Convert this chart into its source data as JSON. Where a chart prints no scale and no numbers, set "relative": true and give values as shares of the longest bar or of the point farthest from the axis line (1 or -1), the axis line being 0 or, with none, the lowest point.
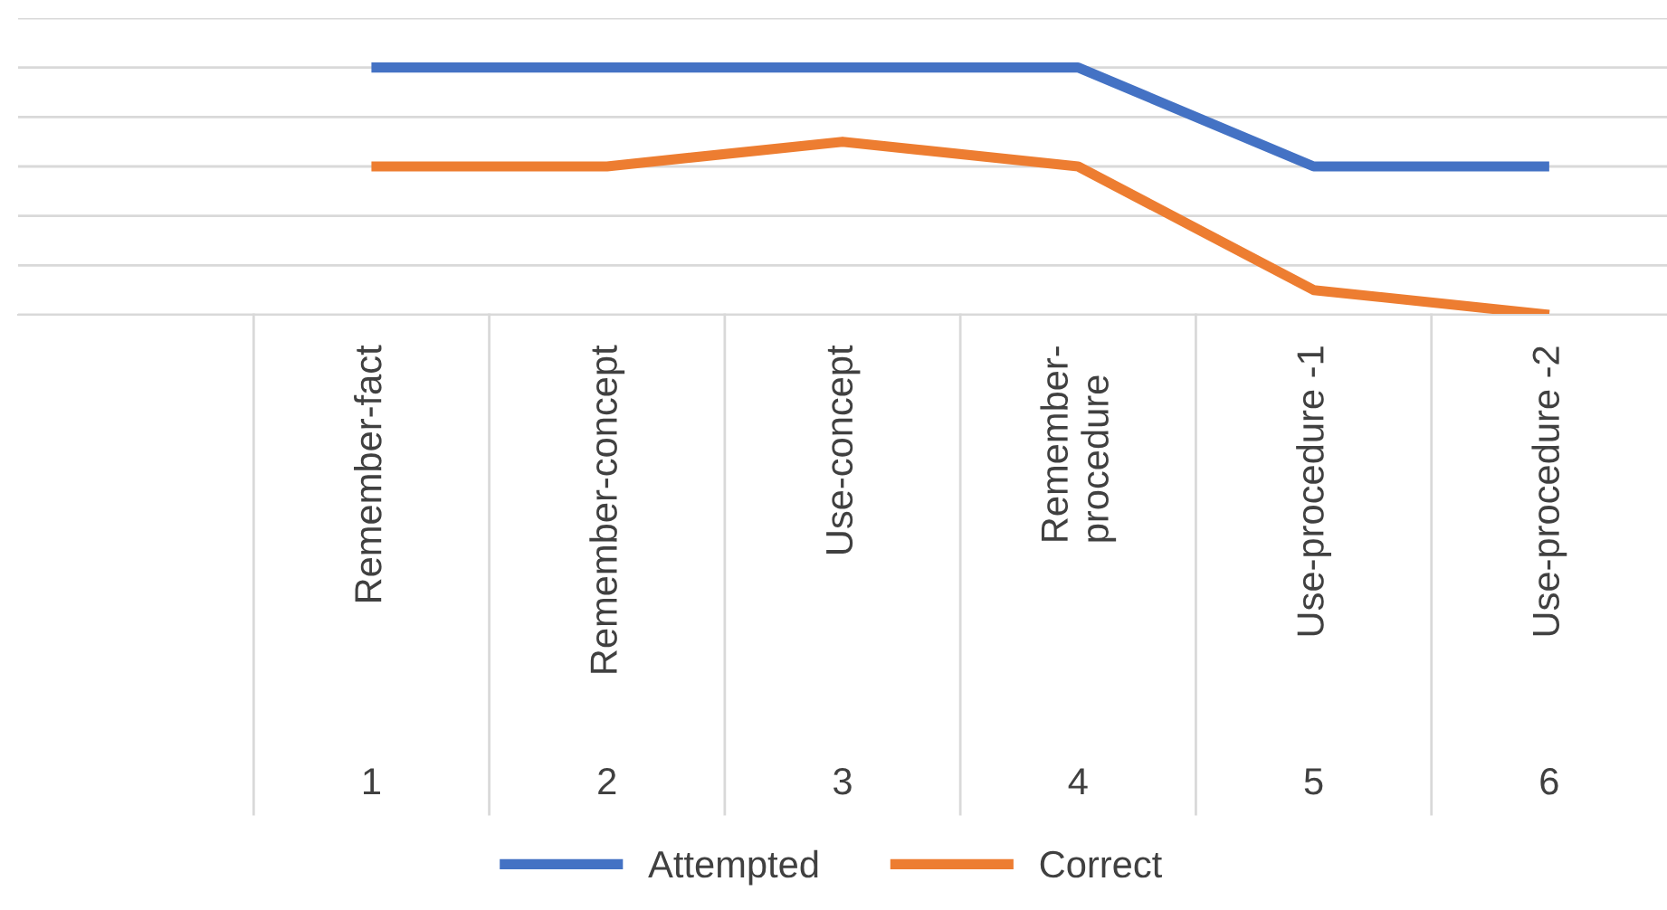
{
  "chart_data": {
    "type": "line",
    "relative": true,
    "grid": "y",
    "legend": "bottom",
    "categories": [
      "Remember-fact",
      "Remember-concept",
      "Use-concept",
      "Remember-procedure",
      "Use-procedure -1",
      "Use-procedure -2"
    ],
    "annotations": [
      "1",
      "2",
      "3",
      "4",
      "5",
      "6"
    ],
    "series": [
      {
        "name": "Attempted",
        "color": "#4472c4",
        "values": [
          1,
          1,
          1,
          1,
          0.6,
          0.6
        ]
      },
      {
        "name": "Correct",
        "color": "#ed7d31",
        "values": [
          0.6,
          0.6,
          0.7,
          0.6,
          0.1,
          0
        ]
      }
    ]
  }
}
